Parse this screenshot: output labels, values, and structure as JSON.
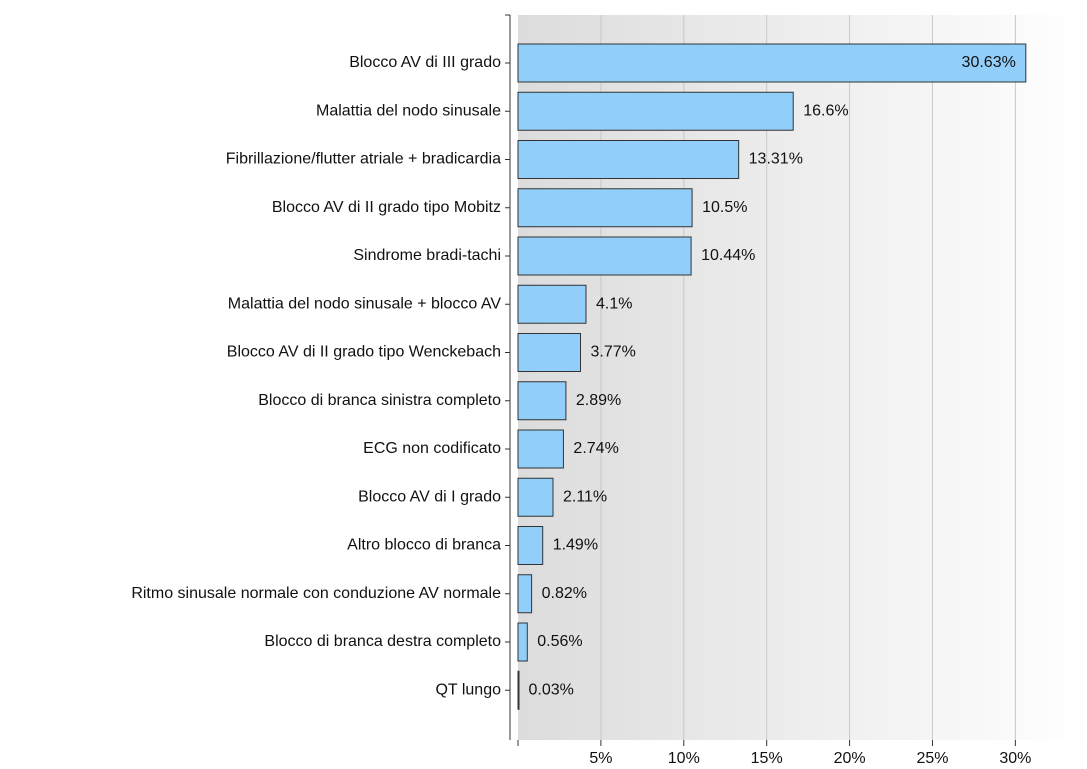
{
  "chart_data": {
    "type": "hbar",
    "categories": [
      "Blocco AV di III grado",
      "Malattia del nodo sinusale",
      "Fibrillazione/flutter atriale + bradicardia",
      "Blocco AV di II grado tipo Mobitz",
      "Sindrome bradi-tachi",
      "Malattia del nodo sinusale + blocco AV",
      "Blocco AV di II grado tipo Wenckebach",
      "Blocco di branca sinistra completo",
      "ECG non codificato",
      "Blocco AV di I grado",
      "Altro blocco di branca",
      "Ritmo sinusale normale con conduzione AV normale",
      "Blocco di branca destra completo",
      "QT lungo"
    ],
    "values": [
      30.63,
      16.6,
      13.31,
      10.5,
      10.44,
      4.1,
      3.77,
      2.89,
      2.74,
      2.11,
      1.49,
      0.82,
      0.56,
      0.03
    ],
    "value_labels": [
      "30.63%",
      "16.6%",
      "13.31%",
      "10.5%",
      "10.44%",
      "4.1%",
      "3.77%",
      "2.89%",
      "2.74%",
      "2.11%",
      "1.49%",
      "0.82%",
      "0.56%",
      "0.03%"
    ],
    "color": "#91cffa",
    "xlim": [
      0,
      34.2
    ],
    "xticks": [
      {
        "value": 5,
        "label": "5%"
      },
      {
        "value": 10,
        "label": "10%"
      },
      {
        "value": 15,
        "label": "15%"
      },
      {
        "value": 20,
        "label": "20%"
      },
      {
        "value": 25,
        "label": "25%"
      },
      {
        "value": 30,
        "label": "30%"
      }
    ],
    "grid": true
  }
}
